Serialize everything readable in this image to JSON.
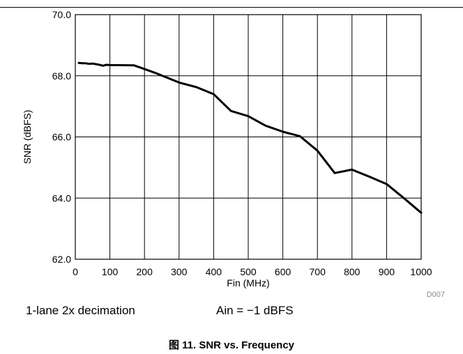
{
  "chart_data": {
    "type": "line",
    "xlabel": "Fin (MHz)",
    "ylabel": "SNR (dBFS)",
    "xlim": [
      0,
      1000
    ],
    "ylim": [
      62.0,
      70.0
    ],
    "xticks": [
      "0",
      "100",
      "200",
      "300",
      "400",
      "500",
      "600",
      "700",
      "800",
      "900",
      "1000"
    ],
    "yticks": [
      "62.0",
      "64.0",
      "66.0",
      "68.0",
      "70.0"
    ],
    "grid": true,
    "legend": "none",
    "line_color": "#000000",
    "series": [
      {
        "x": [
          10,
          20,
          30,
          40,
          50,
          60,
          70,
          80,
          90,
          100,
          170,
          200,
          230,
          300,
          350,
          400,
          450,
          500,
          550,
          600,
          650,
          700,
          750,
          800,
          850,
          900,
          950,
          1000
        ],
        "y": [
          68.42,
          68.41,
          68.41,
          68.39,
          68.4,
          68.38,
          68.36,
          68.33,
          68.36,
          68.35,
          68.34,
          68.22,
          68.1,
          67.78,
          67.63,
          67.4,
          66.85,
          66.68,
          66.37,
          66.17,
          66.02,
          65.55,
          64.82,
          64.93,
          64.7,
          64.46,
          64.0,
          63.52
        ]
      }
    ],
    "code": "D007"
  },
  "notes": {
    "left": "1-lane 2x decimation",
    "right": "Ain = −1 dBFS"
  },
  "caption": "图 11. SNR vs. Frequency"
}
